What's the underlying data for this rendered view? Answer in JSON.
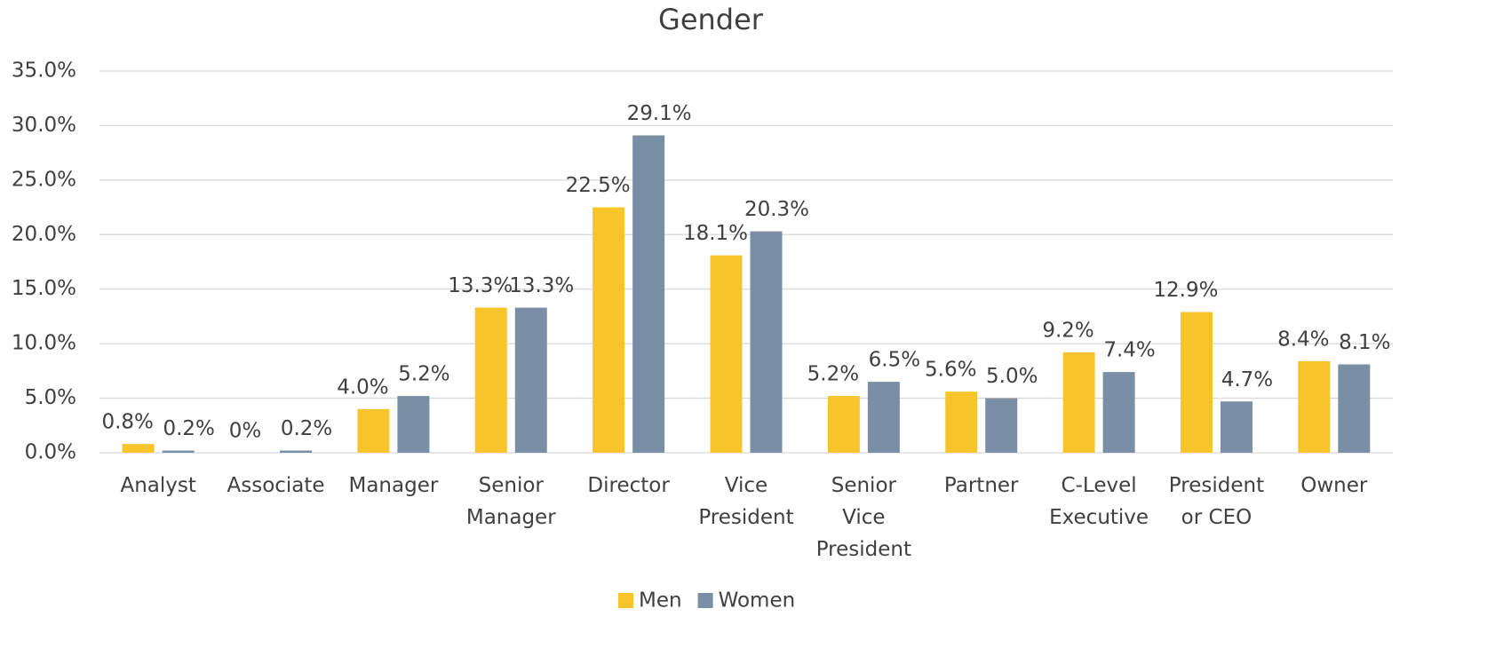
{
  "chart_data": {
    "type": "bar",
    "title": "Gender",
    "categories": [
      "Analyst",
      "Associate",
      "Manager",
      "Senior Manager",
      "Director",
      "Vice President",
      "Senior Vice President",
      "Partner",
      "C-Level Executive",
      "President or CEO",
      "Owner"
    ],
    "series": [
      {
        "name": "Men",
        "color": "#f8c42c",
        "values": [
          0.8,
          0,
          4.0,
          13.3,
          22.5,
          18.1,
          5.2,
          5.6,
          9.2,
          12.9,
          8.4
        ],
        "value_labels": [
          "0.8%",
          "0%",
          "4.0%",
          "13.3%",
          "22.5%",
          "18.1%",
          "5.2%",
          "5.6%",
          "9.2%",
          "12.9%",
          "8.4%"
        ]
      },
      {
        "name": "Women",
        "color": "#7a8fa6",
        "values": [
          0.2,
          0.2,
          5.2,
          13.3,
          29.1,
          20.3,
          6.5,
          5.0,
          7.4,
          4.7,
          8.1
        ],
        "value_labels": [
          "0.2%",
          "0.2%",
          "5.2%",
          "13.3%",
          "29.1%",
          "20.3%",
          "6.5%",
          "5.0%",
          "7.4%",
          "4.7%",
          "8.1%"
        ]
      }
    ],
    "ylim": [
      0,
      35
    ],
    "yticks": [
      {
        "value": 0,
        "label": "0.0%"
      },
      {
        "value": 5,
        "label": "5.0%"
      },
      {
        "value": 10,
        "label": "10.0%"
      },
      {
        "value": 15,
        "label": "15.0%"
      },
      {
        "value": 20,
        "label": "20.0%"
      },
      {
        "value": 25,
        "label": "25.0%"
      },
      {
        "value": 30,
        "label": "30.0%"
      },
      {
        "value": 35,
        "label": "35.0%"
      }
    ],
    "grid": true,
    "legend": "bottom"
  }
}
